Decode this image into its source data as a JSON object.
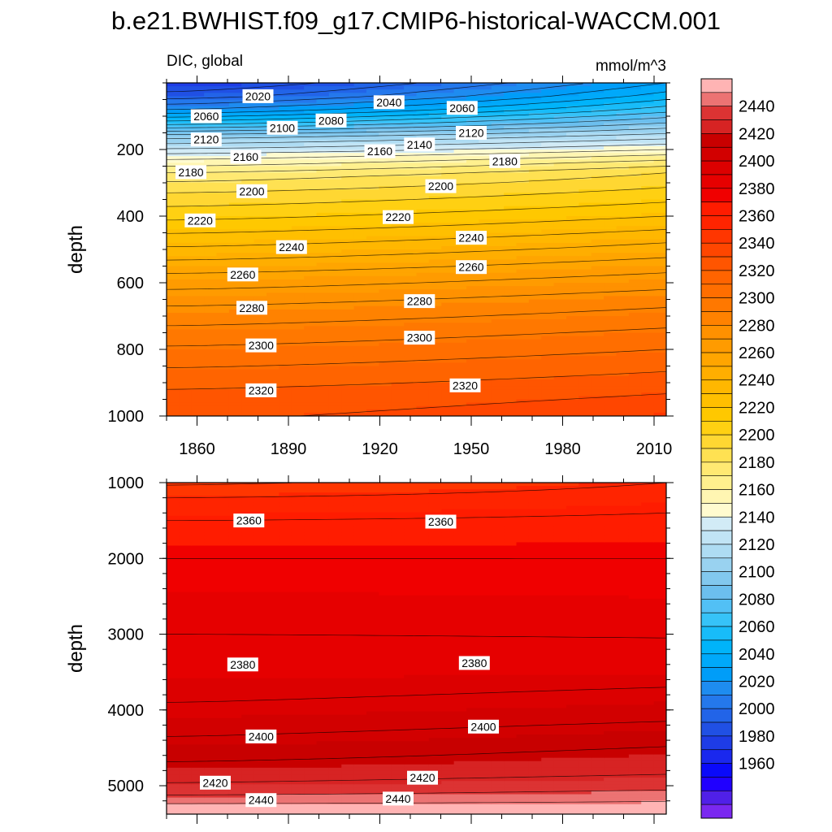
{
  "title": "b.e21.BWHIST.f09_g17.CMIP6-historical-WACCM.001",
  "left_string": "DIC, global",
  "right_string": "mmol/m^3",
  "chart_data": {
    "type": "heatmap",
    "title": "b.e21.BWHIST.f09_g17.CMIP6-historical-WACCM.001",
    "variable": "DIC, global",
    "units": "mmol/m^3",
    "x_range": [
      1850,
      2014
    ],
    "x_ticks": [
      "1860",
      "1890",
      "1920",
      "1950",
      "1980",
      "2010"
    ],
    "panels": [
      {
        "name": "upper",
        "ylabel": "depth",
        "ylim": [
          1000,
          0
        ],
        "y_reversed": true,
        "y_ticks": [
          "200",
          "400",
          "600",
          "800",
          "1000"
        ],
        "x_ticks_labeled": true,
        "surface_value_1850": 2000,
        "contour_labels": [
          {
            "text": "2020",
            "x": 1880,
            "y": 40
          },
          {
            "text": "2040",
            "x": 1923,
            "y": 58
          },
          {
            "text": "2060",
            "x": 1863,
            "y": 100
          },
          {
            "text": "2060",
            "x": 1947,
            "y": 75
          },
          {
            "text": "2080",
            "x": 1904,
            "y": 113
          },
          {
            "text": "2100",
            "x": 1888,
            "y": 135
          },
          {
            "text": "2120",
            "x": 1863,
            "y": 170
          },
          {
            "text": "2120",
            "x": 1950,
            "y": 150
          },
          {
            "text": "2140",
            "x": 1933,
            "y": 185
          },
          {
            "text": "2160",
            "x": 1876,
            "y": 222
          },
          {
            "text": "2160",
            "x": 1920,
            "y": 205
          },
          {
            "text": "2180",
            "x": 1858,
            "y": 268
          },
          {
            "text": "2180",
            "x": 1961,
            "y": 235
          },
          {
            "text": "2200",
            "x": 1878,
            "y": 325
          },
          {
            "text": "2200",
            "x": 1940,
            "y": 310
          },
          {
            "text": "2220",
            "x": 1861,
            "y": 413
          },
          {
            "text": "2220",
            "x": 1926,
            "y": 403
          },
          {
            "text": "2240",
            "x": 1891,
            "y": 493
          },
          {
            "text": "2240",
            "x": 1950,
            "y": 465
          },
          {
            "text": "2260",
            "x": 1875,
            "y": 575
          },
          {
            "text": "2260",
            "x": 1950,
            "y": 553
          },
          {
            "text": "2280",
            "x": 1878,
            "y": 675
          },
          {
            "text": "2280",
            "x": 1933,
            "y": 655
          },
          {
            "text": "2300",
            "x": 1881,
            "y": 788
          },
          {
            "text": "2300",
            "x": 1933,
            "y": 765
          },
          {
            "text": "2320",
            "x": 1881,
            "y": 923
          },
          {
            "text": "2320",
            "x": 1948,
            "y": 908
          }
        ]
      },
      {
        "name": "lower",
        "ylabel": "depth",
        "ylim": [
          5375,
          1000
        ],
        "y_reversed": true,
        "y_ticks": [
          "1000",
          "2000",
          "3000",
          "4000",
          "5000"
        ],
        "x_ticks_labeled": false,
        "contour_labels": [
          {
            "text": "2360",
            "x": 1877,
            "y": 1500
          },
          {
            "text": "2360",
            "x": 1940,
            "y": 1515
          },
          {
            "text": "2380",
            "x": 1875,
            "y": 3400
          },
          {
            "text": "2380",
            "x": 1951,
            "y": 3380
          },
          {
            "text": "2400",
            "x": 1881,
            "y": 4350
          },
          {
            "text": "2400",
            "x": 1954,
            "y": 4220
          },
          {
            "text": "2420",
            "x": 1866,
            "y": 4960
          },
          {
            "text": "2420",
            "x": 1934,
            "y": 4895
          },
          {
            "text": "2440",
            "x": 1881,
            "y": 5190
          },
          {
            "text": "2440",
            "x": 1926,
            "y": 5170
          }
        ]
      }
    ],
    "colorbar": {
      "labels": [
        "2440",
        "2420",
        "2400",
        "2380",
        "2360",
        "2340",
        "2320",
        "2300",
        "2280",
        "2260",
        "2240",
        "2220",
        "2200",
        "2180",
        "2160",
        "2140",
        "2120",
        "2100",
        "2080",
        "2060",
        "2040",
        "2020",
        "2000",
        "1980",
        "1960"
      ],
      "levels_min": 1950,
      "levels_max": 2450,
      "interval": 10,
      "colors_top_to_bottom": [
        "#FFB4B4",
        "#EC7373",
        "#DC3333",
        "#D72323",
        "#C80000",
        "#D20000",
        "#DC0000",
        "#E60000",
        "#F00000",
        "#FF1C00",
        "#FF2400",
        "#FF3600",
        "#FF4600",
        "#FF5500",
        "#FF6400",
        "#FF6E00",
        "#FF7800",
        "#FF8200",
        "#FF9100",
        "#FF9B00",
        "#FFA500",
        "#FFAE00",
        "#FFB700",
        "#FFBF00",
        "#FFC800",
        "#FFD012",
        "#FFD732",
        "#FFE152",
        "#FFE972",
        "#FFF08E",
        "#FFF6B2",
        "#FFFBCF",
        "#D2EBF6",
        "#C1E4F5",
        "#AEDCF3",
        "#99D2F0",
        "#82C8EE",
        "#6CBFEE",
        "#52C0F5",
        "#36C3F8",
        "#18BCF9",
        "#00B4FA",
        "#00A9FA",
        "#009DF8",
        "#1E8CF0",
        "#2478EC",
        "#2264E8",
        "#2050E4",
        "#1E3CE6",
        "#1A28EE",
        "#0A0AFA",
        "#2000FF",
        "#5020E8",
        "#7A28F0"
      ]
    }
  }
}
